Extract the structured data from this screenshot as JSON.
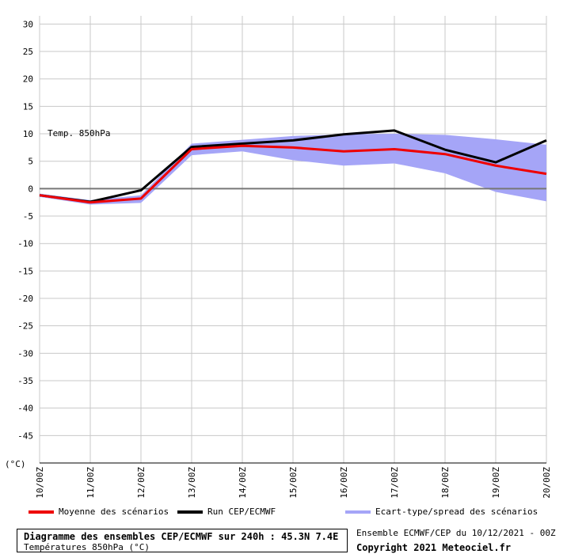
{
  "chart_data": {
    "type": "line",
    "x": [
      "10/00Z",
      "11/00Z",
      "12/00Z",
      "13/00Z",
      "14/00Z",
      "15/00Z",
      "16/00Z",
      "17/00Z",
      "18/00Z",
      "19/00Z",
      "20/00Z"
    ],
    "yticks": [
      30,
      25,
      20,
      15,
      10,
      5,
      0,
      -5,
      -10,
      -15,
      -20,
      -25,
      -30,
      -35,
      -40,
      -45
    ],
    "ylim": [
      -50,
      31.5
    ],
    "unit_label": "(°C)",
    "annotation": "Temp. 850hPa",
    "grid": true,
    "series": [
      {
        "name": "Moyenne des scénarios",
        "color": "#ee0000",
        "values": [
          -1.2,
          -2.5,
          -1.8,
          7.2,
          7.8,
          7.5,
          6.8,
          7.2,
          6.3,
          4.2,
          2.7
        ]
      },
      {
        "name": "Run CEP/ECMWF",
        "color": "#000000",
        "values": [
          -1.2,
          -2.4,
          -0.3,
          7.6,
          8.2,
          8.8,
          9.9,
          10.6,
          7.1,
          4.8,
          8.8
        ]
      },
      {
        "name": "Ecart-type/spread des scénarios",
        "color": "#a5a5f7",
        "type": "band",
        "upper": [
          -0.9,
          -2.1,
          -1.2,
          8.2,
          8.9,
          9.6,
          9.9,
          10.0,
          9.8,
          9.0,
          8.0
        ],
        "lower": [
          -1.5,
          -2.9,
          -2.6,
          6.1,
          6.8,
          5.2,
          4.2,
          4.6,
          2.8,
          -0.6,
          -2.3
        ]
      }
    ]
  },
  "title": {
    "line1": "Diagramme des ensembles CEP/ECMWF sur 240h : 45.3N 7.4E",
    "line2": "Températures 850hPa (°C)"
  },
  "meta": {
    "run": "Ensemble ECMWF/CEP du 10/12/2021 - 00Z",
    "copyright": "Copyright 2021 Meteociel.fr"
  }
}
